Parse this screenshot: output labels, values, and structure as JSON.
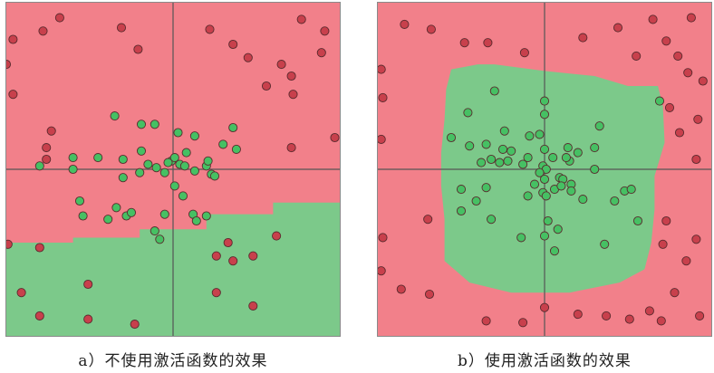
{
  "colors": {
    "red_region": "#f2808a",
    "green_region": "#7cc98a",
    "red_point_fill": "#c8404c",
    "green_point_fill": "#46c063",
    "point_stroke": "#5a2a2e",
    "axis_line": "#555555"
  },
  "chart_data": [
    {
      "type": "scatter",
      "caption": "a）不使用激活函数的效果",
      "xlim": [
        -1,
        1
      ],
      "ylim": [
        -1,
        1
      ],
      "grid": false,
      "region": {
        "lower_class": "green",
        "upper_class": "red",
        "boundary": [
          [
            -1,
            -0.44
          ],
          [
            -0.6,
            -0.41
          ],
          [
            -0.2,
            -0.36
          ],
          [
            0.2,
            -0.27
          ],
          [
            0.6,
            -0.2
          ],
          [
            1,
            -0.16
          ]
        ]
      },
      "series": [
        {
          "class": "red",
          "points": [
            [
              -0.68,
              0.91
            ],
            [
              -0.78,
              0.83
            ],
            [
              -0.96,
              0.78
            ],
            [
              -1,
              0.63
            ],
            [
              -0.31,
              0.85
            ],
            [
              -0.21,
              0.72
            ],
            [
              0.22,
              0.84
            ],
            [
              0.36,
              0.75
            ],
            [
              0.77,
              0.9
            ],
            [
              0.91,
              0.83
            ],
            [
              0.45,
              0.67
            ],
            [
              0.65,
              0.63
            ],
            [
              0.56,
              0.5
            ],
            [
              0.71,
              0.56
            ],
            [
              0.89,
              0.7
            ],
            [
              0.72,
              0.45
            ],
            [
              -0.96,
              0.45
            ],
            [
              0.71,
              0.13
            ],
            [
              -0.73,
              0.23
            ],
            [
              -0.76,
              0.13
            ],
            [
              -0.76,
              0.06
            ],
            [
              0.97,
              0.19
            ],
            [
              -0.99,
              -0.45
            ],
            [
              -0.8,
              -0.47
            ],
            [
              0.36,
              -0.55
            ],
            [
              0.26,
              -0.52
            ],
            [
              0.33,
              -0.44
            ],
            [
              0.48,
              -0.52
            ],
            [
              0.62,
              -0.4
            ],
            [
              -0.91,
              -0.74
            ],
            [
              -0.51,
              -0.69
            ],
            [
              -0.8,
              -0.88
            ],
            [
              -0.51,
              -0.9
            ],
            [
              -0.23,
              -0.93
            ],
            [
              0.48,
              -0.82
            ],
            [
              0.26,
              -0.74
            ]
          ]
        },
        {
          "class": "green",
          "points": [
            [
              -0.35,
              0.32
            ],
            [
              -0.19,
              0.27
            ],
            [
              -0.11,
              0.27
            ],
            [
              -0.19,
              0.11
            ],
            [
              0.03,
              0.22
            ],
            [
              0.13,
              0.2
            ],
            [
              0.3,
              0.15
            ],
            [
              0.36,
              0.25
            ],
            [
              0.38,
              0.12
            ],
            [
              -0.45,
              0.07
            ],
            [
              -0.3,
              0.06
            ],
            [
              -0.2,
              -0.02
            ],
            [
              -0.15,
              0.03
            ],
            [
              -0.1,
              0.01
            ],
            [
              -0.05,
              -0.02
            ],
            [
              -0.01,
              0.05
            ],
            [
              0.01,
              0.07
            ],
            [
              0.04,
              0.03
            ],
            [
              0.07,
              0.02
            ],
            [
              0.13,
              -0.01
            ],
            [
              0.2,
              0.02
            ],
            [
              0.23,
              -0.03
            ],
            [
              0.25,
              -0.04
            ],
            [
              0.21,
              0.05
            ],
            [
              -0.8,
              0.02
            ],
            [
              -0.6,
              0.0
            ],
            [
              -0.6,
              0.07
            ],
            [
              -0.03,
              0.04
            ],
            [
              0.08,
              0.1
            ],
            [
              0.01,
              -0.1
            ],
            [
              0.06,
              -0.16
            ],
            [
              -0.3,
              -0.05
            ],
            [
              -0.56,
              -0.19
            ],
            [
              -0.34,
              -0.23
            ],
            [
              -0.28,
              -0.28
            ],
            [
              -0.05,
              -0.27
            ],
            [
              0.12,
              -0.27
            ],
            [
              0.2,
              -0.28
            ],
            [
              0.14,
              -0.31
            ],
            [
              -0.25,
              -0.26
            ],
            [
              -0.39,
              -0.3
            ],
            [
              -0.54,
              -0.28
            ],
            [
              -0.08,
              -0.42
            ],
            [
              -0.11,
              -0.37
            ]
          ]
        }
      ]
    },
    {
      "type": "scatter",
      "caption": "b）使用激活函数的效果",
      "xlim": [
        -1,
        1
      ],
      "ylim": [
        -1,
        1
      ],
      "grid": false,
      "region": {
        "inner_class": "green",
        "outer_class": "red",
        "boundary": [
          [
            -0.56,
            0.6
          ],
          [
            -0.4,
            0.63
          ],
          [
            -0.3,
            0.63
          ],
          [
            0.0,
            0.59
          ],
          [
            0.3,
            0.56
          ],
          [
            0.5,
            0.5
          ],
          [
            0.68,
            0.5
          ],
          [
            0.71,
            0.38
          ],
          [
            0.72,
            0.16
          ],
          [
            0.66,
            -0.04
          ],
          [
            0.66,
            -0.24
          ],
          [
            0.64,
            -0.44
          ],
          [
            0.6,
            -0.6
          ],
          [
            0.45,
            -0.68
          ],
          [
            0.15,
            -0.74
          ],
          [
            -0.2,
            -0.74
          ],
          [
            -0.45,
            -0.68
          ],
          [
            -0.6,
            -0.55
          ],
          [
            -0.6,
            -0.3
          ],
          [
            -0.62,
            -0.1
          ],
          [
            -0.62,
            0.1
          ],
          [
            -0.6,
            0.3
          ],
          [
            -0.59,
            0.48
          ]
        ]
      },
      "series": [
        {
          "class": "red",
          "points": [
            [
              -0.84,
              0.87
            ],
            [
              -0.68,
              0.84
            ],
            [
              -0.48,
              0.76
            ],
            [
              -0.34,
              0.76
            ],
            [
              -0.12,
              0.7
            ],
            [
              0.23,
              0.79
            ],
            [
              0.44,
              0.85
            ],
            [
              0.65,
              0.9
            ],
            [
              0.88,
              0.91
            ],
            [
              0.73,
              0.77
            ],
            [
              0.55,
              0.68
            ],
            [
              0.8,
              0.68
            ],
            [
              0.86,
              0.58
            ],
            [
              0.95,
              0.53
            ],
            [
              -0.97,
              0.43
            ],
            [
              -0.98,
              0.6
            ],
            [
              0.75,
              0.37
            ],
            [
              0.92,
              0.3
            ],
            [
              0.81,
              0.22
            ],
            [
              -0.98,
              0.18
            ],
            [
              0.91,
              0.06
            ],
            [
              -0.7,
              -0.3
            ],
            [
              0.73,
              -0.31
            ],
            [
              0.91,
              -0.42
            ],
            [
              -0.97,
              -0.41
            ],
            [
              0.71,
              -0.45
            ],
            [
              0.85,
              -0.55
            ],
            [
              -0.98,
              -0.61
            ],
            [
              -0.86,
              -0.72
            ],
            [
              -0.69,
              -0.75
            ],
            [
              0.78,
              -0.74
            ],
            [
              0.63,
              -0.85
            ],
            [
              0.93,
              -0.88
            ],
            [
              -0.35,
              -0.91
            ],
            [
              0.0,
              -0.83
            ],
            [
              0.2,
              -0.87
            ],
            [
              0.37,
              -0.88
            ],
            [
              0.51,
              -0.9
            ],
            [
              0.7,
              -0.91
            ],
            [
              -0.13,
              -0.92
            ]
          ]
        },
        {
          "class": "green",
          "points": [
            [
              -0.3,
              0.47
            ],
            [
              0.0,
              0.41
            ],
            [
              0.69,
              0.41
            ],
            [
              0.0,
              0.33
            ],
            [
              -0.46,
              0.34
            ],
            [
              0.33,
              0.26
            ],
            [
              0.3,
              0.13
            ],
            [
              -0.56,
              0.19
            ],
            [
              -0.24,
              0.23
            ],
            [
              -0.09,
              0.2
            ],
            [
              -0.03,
              0.21
            ],
            [
              0.14,
              0.13
            ],
            [
              -0.45,
              0.14
            ],
            [
              -0.35,
              0.15
            ],
            [
              -0.25,
              0.12
            ],
            [
              -0.2,
              0.11
            ],
            [
              0.0,
              0.12
            ],
            [
              0.05,
              0.07
            ],
            [
              0.15,
              0.05
            ],
            [
              0.2,
              0.1
            ],
            [
              -0.1,
              0.07
            ],
            [
              -0.01,
              0.02
            ],
            [
              0.01,
              0.0
            ],
            [
              -0.22,
              0.05
            ],
            [
              -0.32,
              0.06
            ],
            [
              -0.38,
              0.04
            ],
            [
              -0.27,
              0.04
            ],
            [
              -0.13,
              0.03
            ],
            [
              -0.03,
              -0.02
            ],
            [
              0.0,
              -0.06
            ],
            [
              -0.06,
              -0.09
            ],
            [
              0.09,
              -0.05
            ],
            [
              0.11,
              -0.06
            ],
            [
              0.13,
              0.07
            ],
            [
              0.16,
              -0.09
            ],
            [
              -0.35,
              -0.11
            ],
            [
              -0.01,
              -0.14
            ],
            [
              -0.1,
              -0.16
            ],
            [
              0.01,
              -0.16
            ],
            [
              0.06,
              -0.12
            ],
            [
              0.1,
              -0.1
            ],
            [
              0.16,
              -0.13
            ],
            [
              0.3,
              0.0
            ],
            [
              0.48,
              -0.13
            ],
            [
              0.52,
              -0.12
            ],
            [
              0.23,
              -0.18
            ],
            [
              0.42,
              -0.19
            ],
            [
              0.56,
              -0.31
            ],
            [
              0.36,
              -0.45
            ],
            [
              0.08,
              -0.36
            ],
            [
              -0.14,
              -0.41
            ],
            [
              -0.32,
              -0.3
            ],
            [
              -0.41,
              -0.19
            ],
            [
              -0.5,
              -0.12
            ],
            [
              -0.5,
              -0.25
            ],
            [
              0.02,
              -0.31
            ],
            [
              0.0,
              -0.4
            ],
            [
              0.06,
              -0.49
            ]
          ]
        }
      ]
    }
  ]
}
